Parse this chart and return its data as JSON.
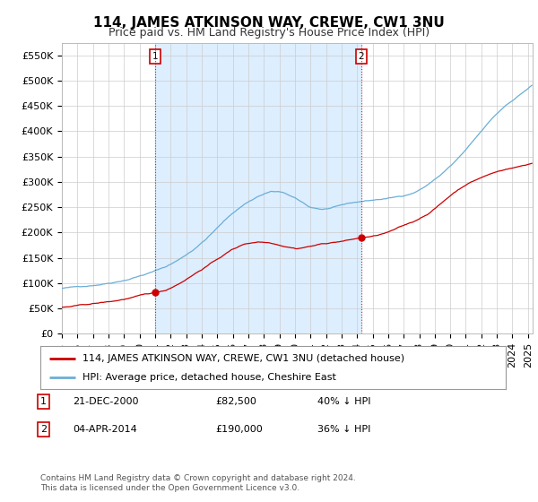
{
  "title": "114, JAMES ATKINSON WAY, CREWE, CW1 3NU",
  "subtitle": "Price paid vs. HM Land Registry's House Price Index (HPI)",
  "ylabel_ticks": [
    "£0",
    "£50K",
    "£100K",
    "£150K",
    "£200K",
    "£250K",
    "£300K",
    "£350K",
    "£400K",
    "£450K",
    "£500K",
    "£550K"
  ],
  "ytick_values": [
    0,
    50000,
    100000,
    150000,
    200000,
    250000,
    300000,
    350000,
    400000,
    450000,
    500000,
    550000
  ],
  "ylim": [
    0,
    575000
  ],
  "xlim_start": 1995.0,
  "xlim_end": 2025.3,
  "background_color": "#ffffff",
  "plot_bg_color": "#ffffff",
  "grid_color": "#cccccc",
  "hpi_color": "#6baed6",
  "hpi_line_color": "#6baed6",
  "price_color": "#cc0000",
  "span_color": "#ddeeff",
  "marker1_date": 2001.0,
  "marker1_price": 82500,
  "marker2_date": 2014.27,
  "marker2_price": 190000,
  "legend_entries": [
    "114, JAMES ATKINSON WAY, CREWE, CW1 3NU (detached house)",
    "HPI: Average price, detached house, Cheshire East"
  ],
  "annotation1_date": "21-DEC-2000",
  "annotation1_price": "£82,500",
  "annotation1_pct": "40% ↓ HPI",
  "annotation2_date": "04-APR-2014",
  "annotation2_price": "£190,000",
  "annotation2_pct": "36% ↓ HPI",
  "footer": "Contains HM Land Registry data © Crown copyright and database right 2024.\nThis data is licensed under the Open Government Licence v3.0.",
  "title_fontsize": 11,
  "subtitle_fontsize": 9,
  "tick_fontsize": 8,
  "legend_fontsize": 8
}
